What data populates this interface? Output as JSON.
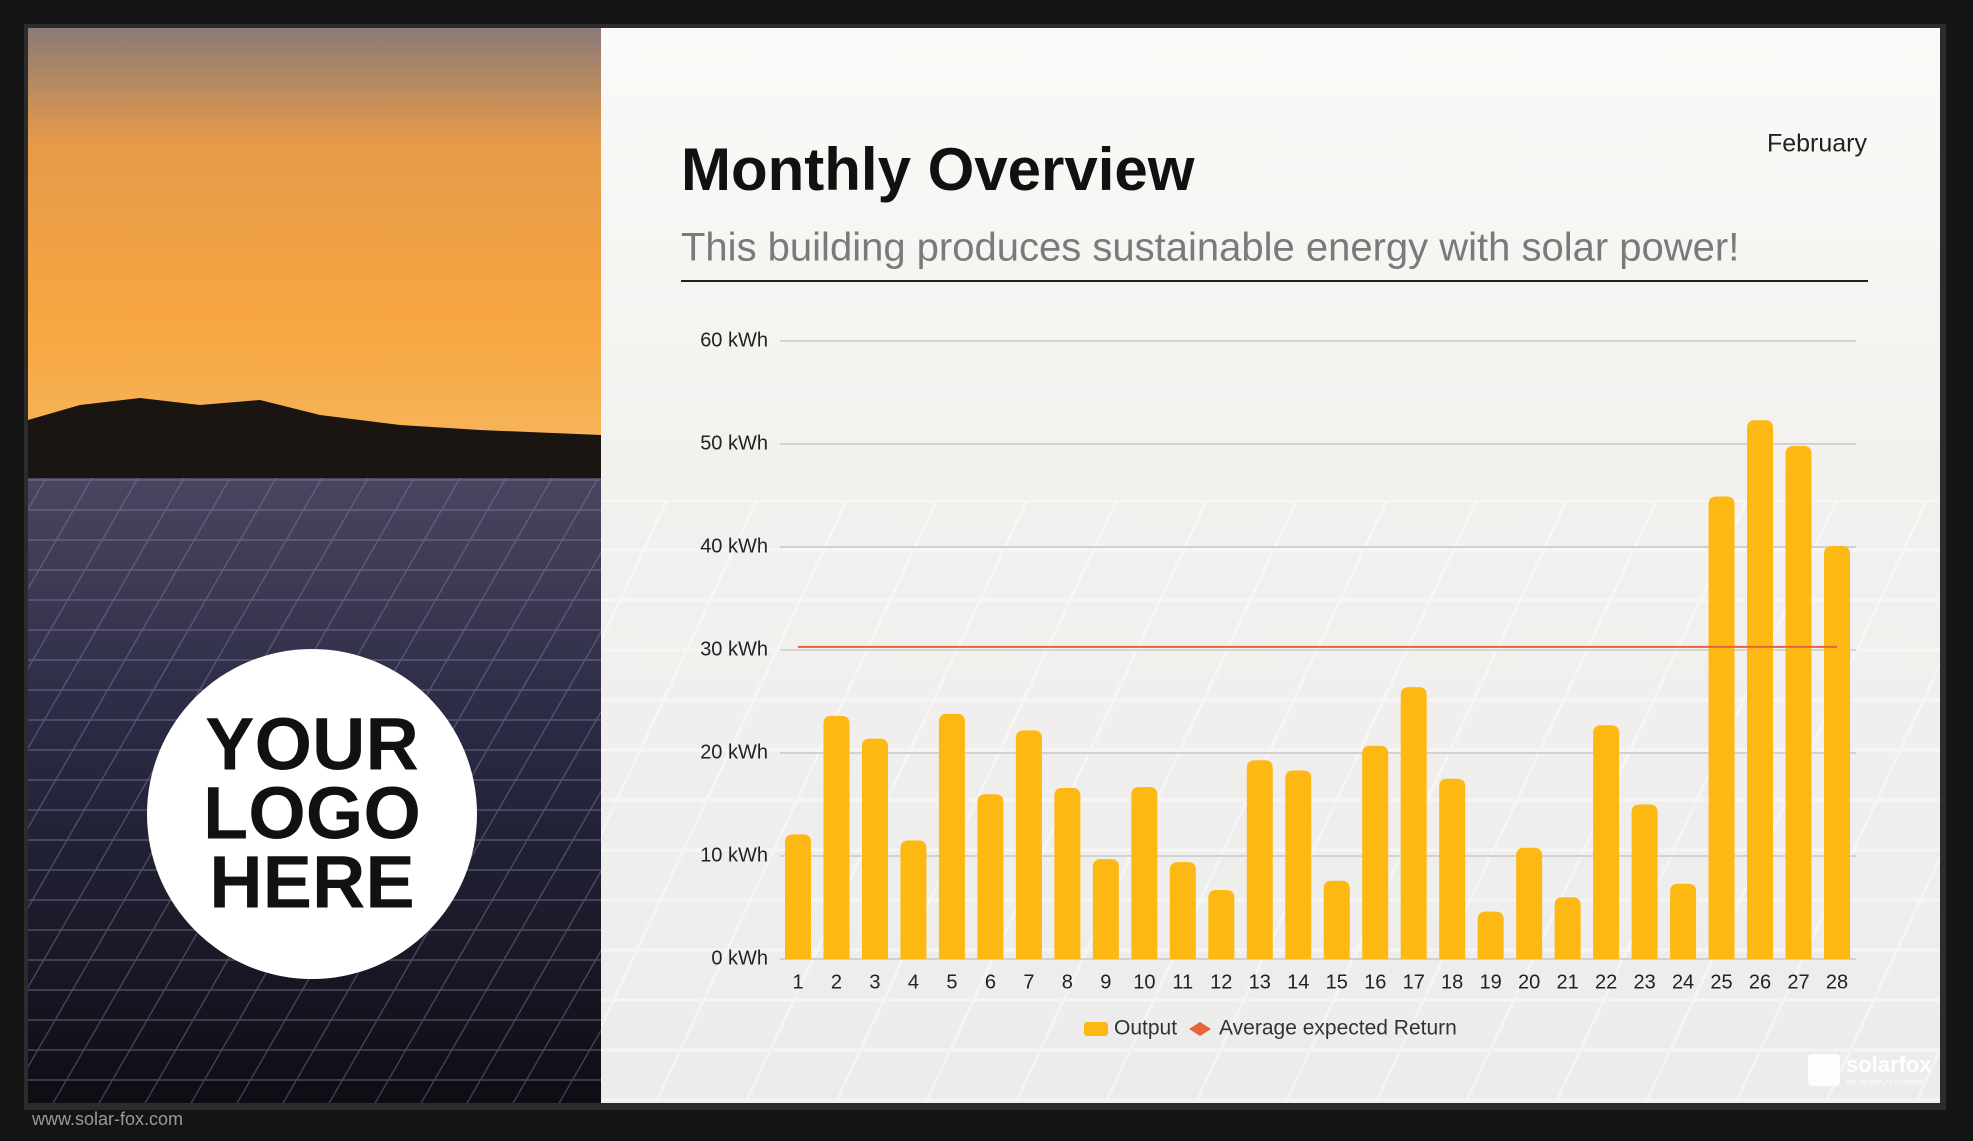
{
  "header": {
    "title": "Monthly Overview",
    "subtitle": "This building produces sustainable energy with solar power!",
    "period": "February"
  },
  "logo_placeholder": {
    "lines": [
      "YOUR",
      "LOGO",
      "HERE"
    ]
  },
  "brand": {
    "name": "solarfox",
    "tagline": "SOLAR DISPLAY SYSTEMS",
    "url": "www.solar-fox.com"
  },
  "chart_data": {
    "type": "bar",
    "categories": [
      "1",
      "2",
      "3",
      "4",
      "5",
      "6",
      "7",
      "8",
      "9",
      "10",
      "11",
      "12",
      "13",
      "14",
      "15",
      "16",
      "17",
      "18",
      "19",
      "20",
      "21",
      "22",
      "23",
      "24",
      "25",
      "26",
      "27",
      "28"
    ],
    "series": [
      {
        "name": "Output",
        "color": "#fdb813",
        "values": [
          12.1,
          23.6,
          21.4,
          11.5,
          23.8,
          16.0,
          22.2,
          16.6,
          9.7,
          16.7,
          9.4,
          6.7,
          19.3,
          18.3,
          7.6,
          20.7,
          26.4,
          17.5,
          4.6,
          10.8,
          6.0,
          22.7,
          15.0,
          7.3,
          44.9,
          52.3,
          49.8,
          40.1
        ]
      },
      {
        "name": "Average expected Return",
        "type": "line",
        "color": "#e8643c",
        "values": [
          30.3,
          30.3,
          30.3,
          30.3,
          30.3,
          30.3,
          30.3,
          30.3,
          30.3,
          30.3,
          30.3,
          30.3,
          30.3,
          30.3,
          30.3,
          30.3,
          30.3,
          30.3,
          30.3,
          30.3,
          30.3,
          30.3,
          30.3,
          30.3,
          30.3,
          30.3,
          30.3,
          30.3
        ]
      }
    ],
    "ylim": [
      0,
      60
    ],
    "yticks": [
      {
        "value": 0,
        "label": "0 kWh"
      },
      {
        "value": 10,
        "label": "10 kWh"
      },
      {
        "value": 20,
        "label": "20 kWh"
      },
      {
        "value": 30,
        "label": "30 kWh"
      },
      {
        "value": 40,
        "label": "40 kWh"
      },
      {
        "value": 50,
        "label": "50 kWh"
      },
      {
        "value": 60,
        "label": "60 kWh"
      }
    ],
    "grid": true,
    "legend": "bottom"
  }
}
